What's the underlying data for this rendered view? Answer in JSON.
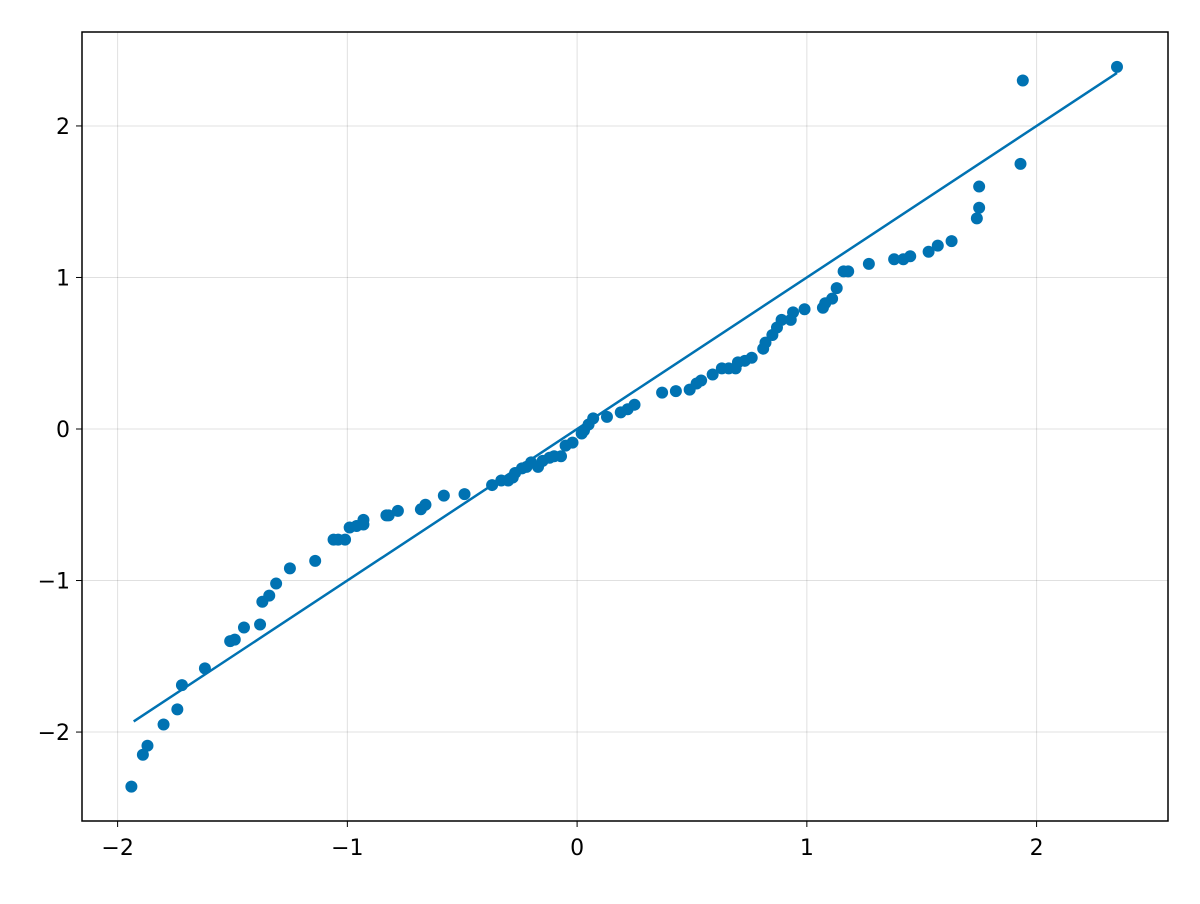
{
  "chart_data": {
    "type": "scatter",
    "color": "#0072b2",
    "grid": true,
    "xlim": [
      -2.155,
      2.572
    ],
    "ylim": [
      -2.587,
      2.62
    ],
    "xticks": [
      {
        "value": -2,
        "label": "−2"
      },
      {
        "value": -1,
        "label": "−1"
      },
      0,
      1,
      2
    ],
    "yticks": [
      {
        "value": -2,
        "label": "−2"
      },
      {
        "value": -1,
        "label": "−1"
      },
      0,
      1,
      2
    ],
    "x": [
      -1.94,
      -1.89,
      -1.87,
      -1.8,
      -1.74,
      -1.72,
      -1.62,
      -1.51,
      -1.49,
      -1.45,
      -1.38,
      -1.37,
      -1.34,
      -1.31,
      -1.25,
      -1.14,
      -1.06,
      -1.04,
      -1.01,
      -0.99,
      -0.96,
      -0.93,
      -0.93,
      -0.83,
      -0.82,
      -0.78,
      -0.68,
      -0.66,
      -0.58,
      -0.49,
      -0.37,
      -0.33,
      -0.3,
      -0.28,
      -0.27,
      -0.24,
      -0.22,
      -0.2,
      -0.17,
      -0.15,
      -0.12,
      -0.1,
      -0.07,
      -0.05,
      -0.02,
      0.02,
      0.03,
      0.05,
      0.07,
      0.13,
      0.19,
      0.22,
      0.25,
      0.37,
      0.43,
      0.49,
      0.52,
      0.54,
      0.59,
      0.63,
      0.66,
      0.69,
      0.7,
      0.73,
      0.76,
      0.81,
      0.82,
      0.85,
      0.87,
      0.89,
      0.93,
      0.94,
      0.99,
      1.07,
      1.08,
      1.11,
      1.13,
      1.16,
      1.18,
      1.27,
      1.38,
      1.42,
      1.45,
      1.53,
      1.57,
      1.63,
      1.74,
      1.75,
      1.75,
      1.93,
      1.94,
      2.35
    ],
    "y": [
      -2.36,
      -2.15,
      -2.09,
      -1.95,
      -1.85,
      -1.69,
      -1.58,
      -1.4,
      -1.39,
      -1.31,
      -1.29,
      -1.14,
      -1.1,
      -1.02,
      -0.92,
      -0.87,
      -0.73,
      -0.73,
      -0.73,
      -0.65,
      -0.64,
      -0.63,
      -0.6,
      -0.57,
      -0.57,
      -0.54,
      -0.53,
      -0.5,
      -0.44,
      -0.43,
      -0.37,
      -0.34,
      -0.34,
      -0.32,
      -0.29,
      -0.26,
      -0.25,
      -0.22,
      -0.25,
      -0.21,
      -0.19,
      -0.18,
      -0.18,
      -0.11,
      -0.09,
      -0.03,
      -0.01,
      0.03,
      0.07,
      0.08,
      0.11,
      0.13,
      0.16,
      0.24,
      0.25,
      0.26,
      0.3,
      0.32,
      0.36,
      0.4,
      0.4,
      0.4,
      0.44,
      0.45,
      0.47,
      0.53,
      0.57,
      0.62,
      0.67,
      0.72,
      0.72,
      0.77,
      0.79,
      0.8,
      0.83,
      0.86,
      0.93,
      1.04,
      1.04,
      1.09,
      1.12,
      1.12,
      1.14,
      1.17,
      1.21,
      1.24,
      1.39,
      1.46,
      1.6,
      1.75,
      2.3,
      2.39
    ],
    "reference_line": {
      "x": [
        -1.93,
        2.35
      ],
      "y": [
        -1.93,
        2.35
      ]
    }
  }
}
